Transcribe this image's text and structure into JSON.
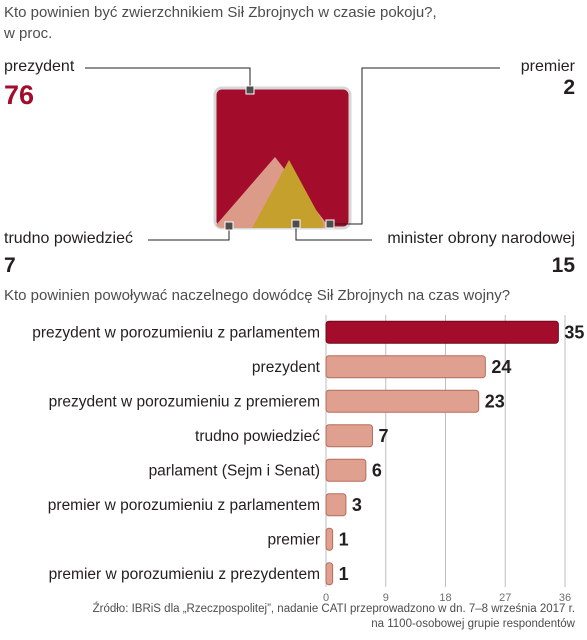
{
  "colors": {
    "accent": "#a30d2b",
    "bar": "#e0a08f",
    "bar_edge": "#b56d5c",
    "gold": "#c6a02c",
    "salmon": "#dc9b88"
  },
  "chart1": {
    "title": "Kto powinien być zwierzchnikiem Sił Zbrojnych w czasie pokoju?,",
    "subtitle": "w proc.",
    "slices": [
      {
        "label": "prezydent",
        "value": 76
      },
      {
        "label": "premier",
        "value": 2
      },
      {
        "label": "trudno powiedzieć",
        "value": 7
      },
      {
        "label": "minister obrony narodowej",
        "value": 15
      }
    ]
  },
  "chart_data": [
    {
      "type": "area",
      "title": "Kto powinien być zwierzchnikiem Sił Zbrojnych w czasie pokoju?,",
      "subtitle": "w proc.",
      "categories": [
        "prezydent",
        "premier",
        "trudno powiedzieć",
        "minister obrony narodowej"
      ],
      "values": [
        76,
        2,
        7,
        15
      ]
    },
    {
      "type": "bar",
      "orientation": "horizontal",
      "title": "Kto powinien powoływać naczelnego dowódcę Sił Zbrojnych na czas wojny?",
      "categories": [
        "prezydent w porozumieniu z parlamentem",
        "prezydent",
        "prezydent w porozumieniu z premierem",
        "trudno powiedzieć",
        "parlament (Sejm i Senat)",
        "premier w porozumieniu z parlamentem",
        "premier",
        "premier w porozumieniu z prezydentem"
      ],
      "values": [
        35,
        24,
        23,
        7,
        6,
        3,
        1,
        1
      ],
      "xlim": [
        0,
        36
      ],
      "xticks": [
        0,
        9,
        18,
        27,
        36
      ],
      "grid": true
    }
  ],
  "source": {
    "line1": "Źródło: IBRiS dla „Rzeczpospolitej”, nadanie CATI przeprowadzono w dn. 7–8 września 2017 r.",
    "line2": "na 1100-osobowej grupie respondentów"
  }
}
